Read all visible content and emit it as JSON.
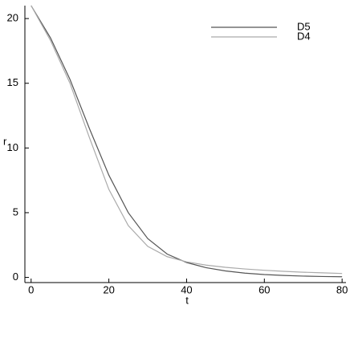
{
  "chart_data": {
    "type": "line",
    "x_label": "t",
    "y_label": "r",
    "x": [
      0,
      5,
      10,
      15,
      20,
      25,
      30,
      35,
      40,
      45,
      50,
      55,
      60,
      65,
      70,
      75,
      80
    ],
    "series": [
      {
        "name": "D5",
        "color": "#555555",
        "values": [
          21,
          18.5,
          15.3,
          11.5,
          7.9,
          5.0,
          3.0,
          1.8,
          1.15,
          0.75,
          0.5,
          0.33,
          0.22,
          0.15,
          0.1,
          0.07,
          0.05
        ]
      },
      {
        "name": "D4",
        "color": "#aaaaaa",
        "values": [
          21,
          18.3,
          15.0,
          10.8,
          6.8,
          4.0,
          2.4,
          1.6,
          1.2,
          0.95,
          0.78,
          0.65,
          0.55,
          0.47,
          0.4,
          0.35,
          0.3
        ]
      }
    ],
    "xlim": [
      -1.6,
      81
    ],
    "ylim": [
      -0.4,
      21
    ],
    "xticks": [
      0,
      20,
      40,
      60,
      80
    ],
    "yticks": [
      0,
      5,
      10,
      15,
      20
    ],
    "legend": "top-right"
  }
}
